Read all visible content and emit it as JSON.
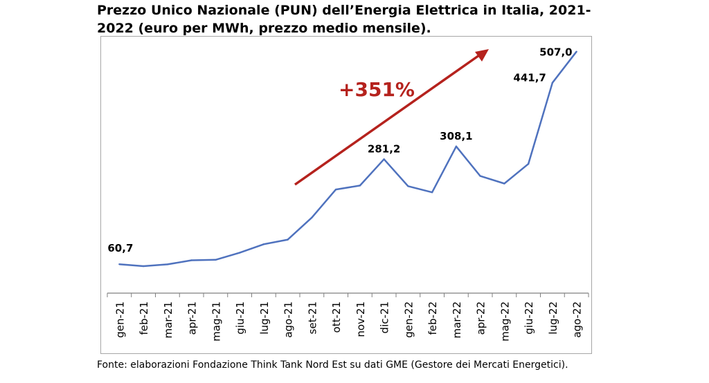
{
  "title": "Prezzo Unico Nazionale (PUN) dell’Energia Elettrica in Italia, 2021-2022 (euro per MWh, prezzo medio mensile).",
  "source": "Fonte: elaborazioni Fondazione Think Tank Nord Est su dati GME (Gestore dei Mercati Energetici).",
  "annotation": {
    "text": "+351%",
    "color": "#b5221d"
  },
  "colors": {
    "line": "#4f72be",
    "axis": "#7f7f7f",
    "frame": "#a6a6a6"
  },
  "chart_data": {
    "type": "line",
    "categories": [
      "gen-21",
      "feb-21",
      "mar-21",
      "apr-21",
      "mag-21",
      "giu-21",
      "lug-21",
      "ago-21",
      "set-21",
      "ott-21",
      "nov-21",
      "dic-21",
      "gen-22",
      "feb-22",
      "mar-22",
      "apr-22",
      "mag-22",
      "giu-22",
      "lug-22",
      "ago-22"
    ],
    "values": [
      60.7,
      56.6,
      60.4,
      69.0,
      69.9,
      84.8,
      102.7,
      112.4,
      158.6,
      217.6,
      225.9,
      281.2,
      224.5,
      211.7,
      308.1,
      245.9,
      230.1,
      271.3,
      441.7,
      507.0
    ],
    "data_labels": [
      {
        "index": 0,
        "text": "60,7"
      },
      {
        "index": 11,
        "text": "281,2"
      },
      {
        "index": 14,
        "text": "308,1"
      },
      {
        "index": 18,
        "text": "441,7"
      },
      {
        "index": 19,
        "text": "507,0"
      }
    ],
    "ylim": [
      0,
      540
    ],
    "grid": false,
    "legend": "none"
  }
}
